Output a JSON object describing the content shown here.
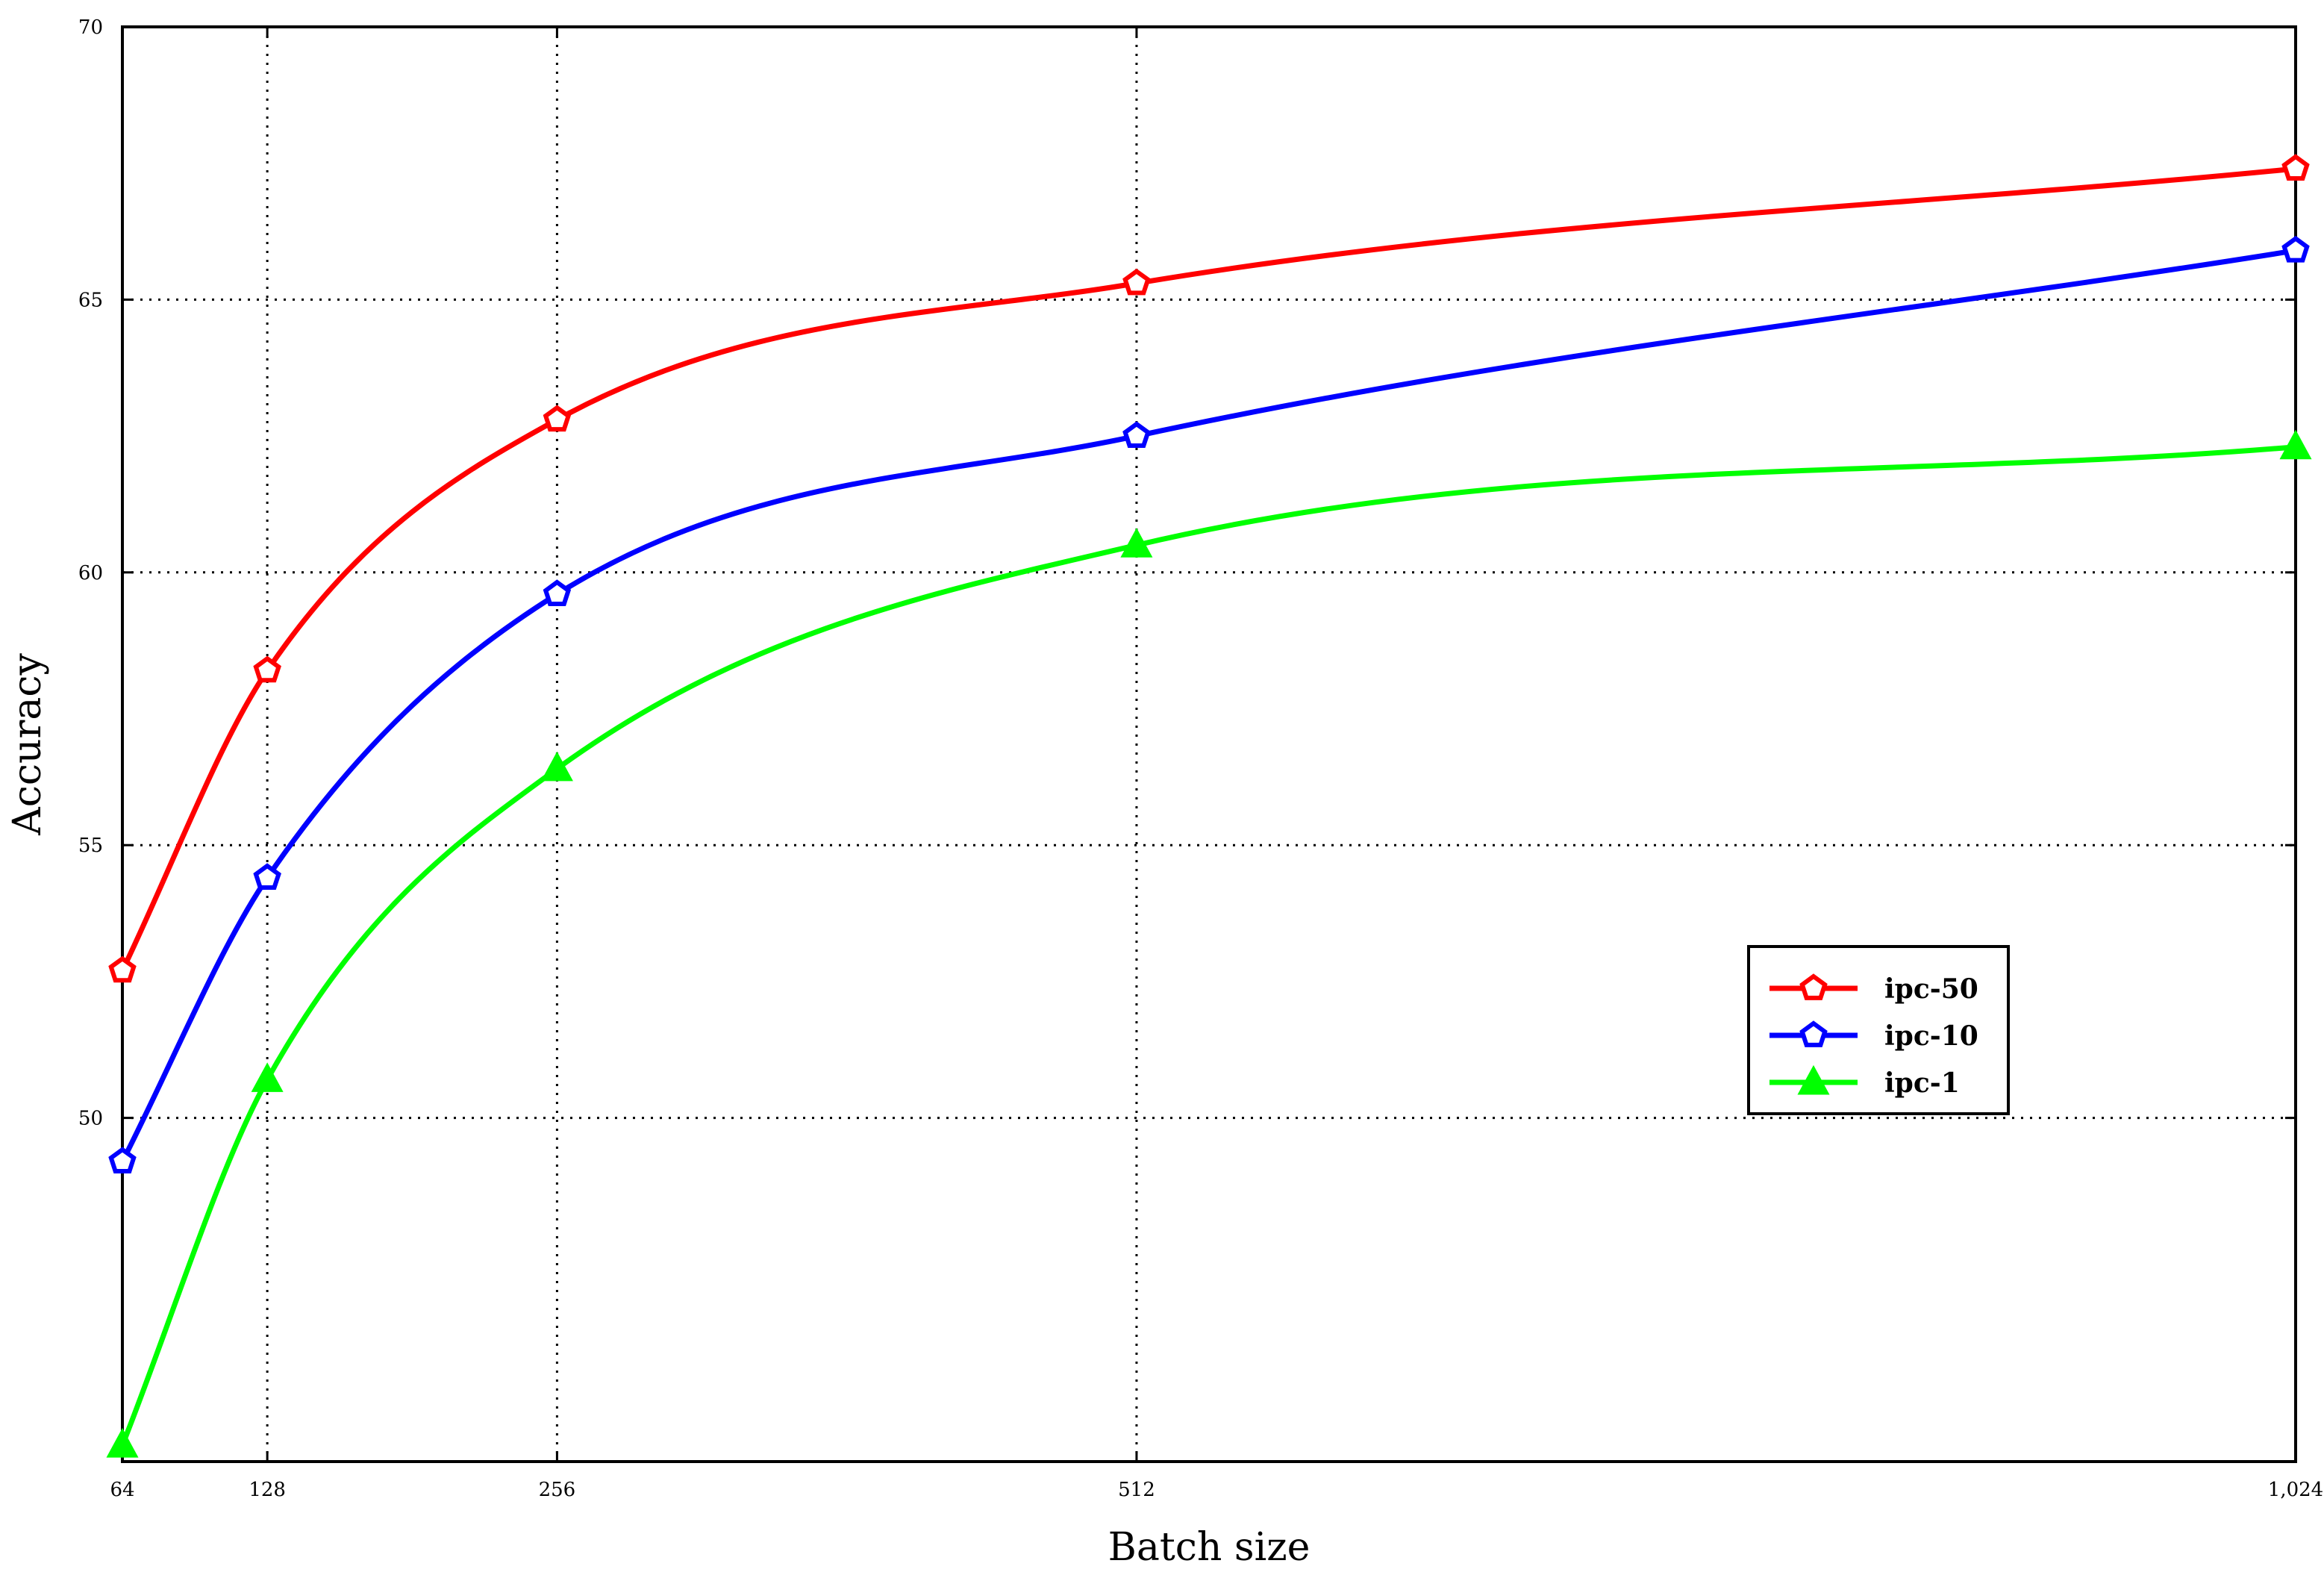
{
  "chart_data": {
    "type": "line",
    "title": "",
    "xlabel": "Batch size",
    "ylabel": "Accuracy",
    "x": [
      64,
      128,
      256,
      512,
      1024
    ],
    "x_tick_labels": [
      "64",
      "128",
      "256",
      "512",
      "1,024"
    ],
    "y_ticks": [
      50,
      55,
      60,
      65,
      70
    ],
    "y_tick_labels": [
      "50",
      "55",
      "60",
      "65",
      "70"
    ],
    "xlim": [
      64,
      1024
    ],
    "ylim": [
      43.7,
      70
    ],
    "x_scale": "linear",
    "grid": true,
    "grid_style": "dotted",
    "legend_position": "lower-right",
    "series": [
      {
        "name": "ipc-50",
        "color": "#ff0000",
        "marker": "pentagon-open",
        "values": [
          52.7,
          58.2,
          62.8,
          65.3,
          67.4
        ]
      },
      {
        "name": "ipc-10",
        "color": "#0000ff",
        "marker": "pentagon-open",
        "values": [
          49.2,
          54.4,
          59.6,
          62.5,
          65.9
        ]
      },
      {
        "name": "ipc-1",
        "color": "#00ff00",
        "marker": "triangle-filled",
        "values": [
          44.0,
          50.7,
          56.4,
          60.5,
          62.3
        ]
      }
    ]
  }
}
